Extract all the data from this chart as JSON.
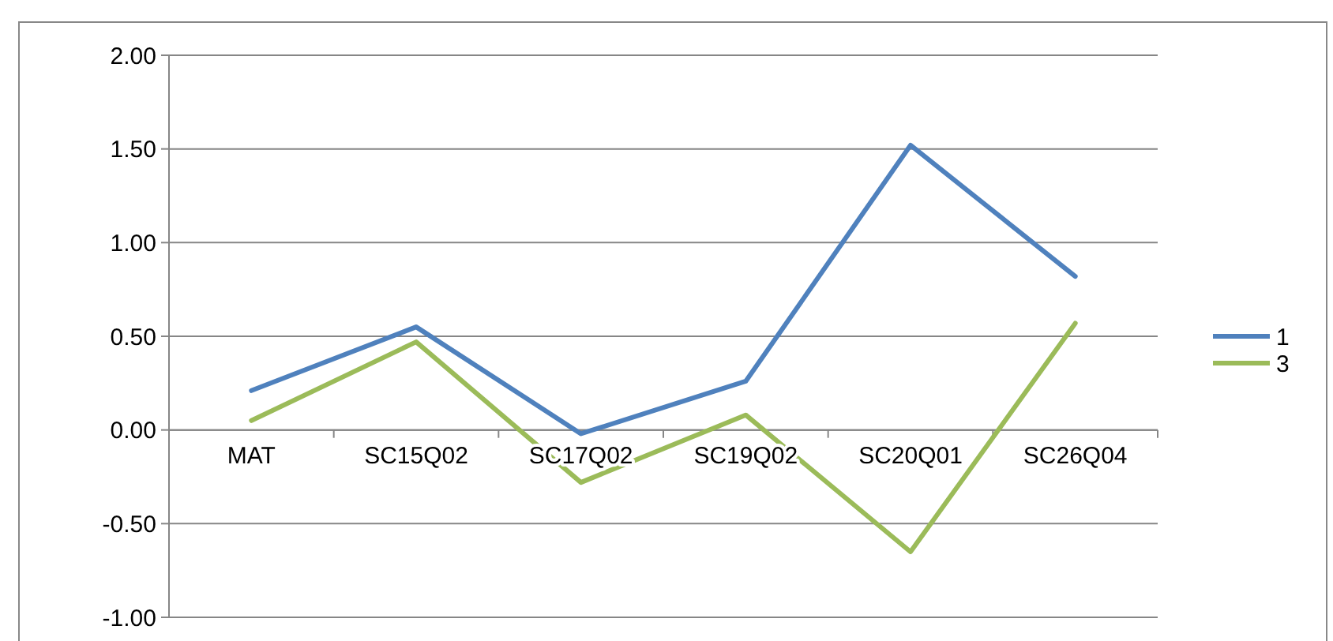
{
  "chart_data": {
    "type": "line",
    "categories": [
      "MAT",
      "SC15Q02",
      "SC17Q02",
      "SC19Q02",
      "SC20Q01",
      "SC26Q04"
    ],
    "series": [
      {
        "name": "1",
        "color": "#4f81bd",
        "values": [
          0.21,
          0.55,
          -0.02,
          0.26,
          1.52,
          0.82
        ]
      },
      {
        "name": "3",
        "color": "#9bbb59",
        "values": [
          0.05,
          0.47,
          -0.28,
          0.08,
          -0.65,
          0.57
        ]
      }
    ],
    "ylim": [
      -1,
      2
    ],
    "yticks": [
      {
        "value": -1,
        "label": "-1.00"
      },
      {
        "value": -0.5,
        "label": "-0.50"
      },
      {
        "value": 0,
        "label": "0.00"
      },
      {
        "value": 0.5,
        "label": "0.50"
      },
      {
        "value": 1,
        "label": "1.00"
      },
      {
        "value": 1.5,
        "label": "1.50"
      },
      {
        "value": 2,
        "label": "2.00"
      }
    ],
    "grid": "y",
    "legend": "right",
    "marker": "none",
    "line_style": "solid"
  }
}
